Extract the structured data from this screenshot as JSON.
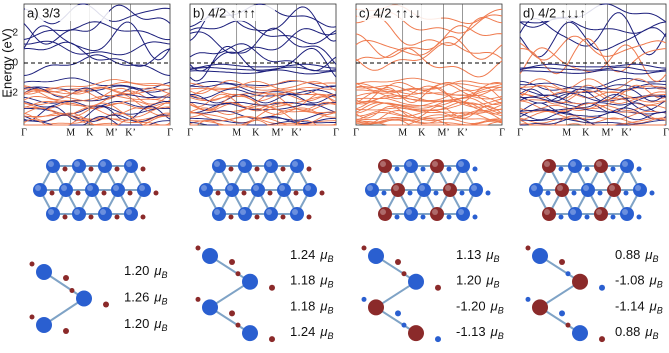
{
  "figure": {
    "y_axis_label": "Energy (eV)",
    "y_ticks": [
      "2",
      "0",
      "-2"
    ],
    "k_points": [
      "Γ",
      "M",
      "K",
      "M’",
      "K’",
      "Γ"
    ],
    "unit_symbol": "μ",
    "unit_subscript": "B",
    "panels": [
      {
        "label": "a) 3/3",
        "moments": [
          "1.20",
          "1.26",
          "1.20"
        ]
      },
      {
        "label": "b) 4/2 ↑↑↑↑",
        "moments": [
          "1.24",
          "1.18",
          "1.18",
          "1.24"
        ]
      },
      {
        "label": "c) 4/2 ↑↑↓↓",
        "moments": [
          "1.13",
          "1.20",
          "-1.20",
          "-1.13"
        ]
      },
      {
        "label": "d) 4/2 ↑↓↓↑",
        "moments": [
          "0.88",
          "-1.08",
          "-1.14",
          "0.88"
        ]
      }
    ]
  }
}
